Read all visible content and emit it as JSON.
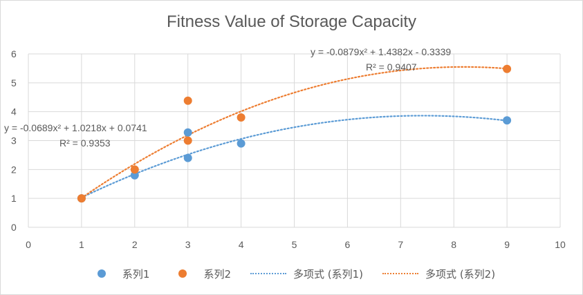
{
  "chart_data": {
    "type": "scatter",
    "title": "Fitness Value of Storage Capacity",
    "xlim": [
      0,
      10
    ],
    "ylim": [
      0,
      6
    ],
    "x_ticks": [
      "0",
      "1",
      "2",
      "3",
      "4",
      "5",
      "6",
      "7",
      "8",
      "9",
      "10"
    ],
    "y_ticks": [
      "0",
      "1",
      "2",
      "3",
      "4",
      "5",
      "6"
    ],
    "grid": "horizontal",
    "legend_position": "bottom",
    "series": [
      {
        "name": "系列1",
        "color": "#5b9bd5",
        "points": [
          [
            1,
            1.0
          ],
          [
            2,
            1.8
          ],
          [
            3,
            2.4
          ],
          [
            3,
            3.28
          ],
          [
            4,
            2.9
          ],
          [
            9,
            3.7
          ]
        ]
      },
      {
        "name": "系列2",
        "color": "#ed7d31",
        "points": [
          [
            1,
            1.0
          ],
          [
            2,
            2.0
          ],
          [
            3,
            3.0
          ],
          [
            3,
            4.38
          ],
          [
            4,
            3.8
          ],
          [
            9,
            5.48
          ]
        ]
      }
    ],
    "trendlines": [
      {
        "name": "多项式 (系列1)",
        "color": "#5b9bd5",
        "coef": [
          -0.0689,
          1.0218,
          0.0741
        ],
        "x_range": [
          1,
          9
        ],
        "equation_text": "y = -0.0689x² + 1.0218x + 0.0741",
        "r2_text": "R² = 0.9353"
      },
      {
        "name": "多项式 (系列2)",
        "color": "#ed7d31",
        "coef": [
          -0.0879,
          1.4382,
          -0.3339
        ],
        "x_range": [
          1,
          9
        ],
        "equation_text": "y = -0.0879x² + 1.4382x - 0.3339",
        "r2_text": "R² = 0.9407"
      }
    ]
  }
}
